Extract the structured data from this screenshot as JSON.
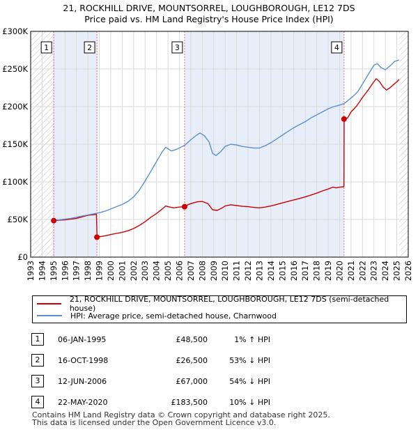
{
  "header": {
    "title_line1": "21, ROCKHILL DRIVE, MOUNTSORREL, LOUGHBOROUGH, LE12 7DS",
    "title_line2": "Price paid vs. HM Land Registry's House Price Index (HPI)"
  },
  "chart_data": {
    "type": "line",
    "title": "21, ROCKHILL DRIVE, MOUNTSORREL, LOUGHBOROUGH, LE12 7DS — Price paid vs. HM Land Registry's House Price Index (HPI)",
    "xlim": [
      1993,
      2026
    ],
    "ylim": [
      0,
      300000
    ],
    "x_ticks": [
      1993,
      1994,
      1995,
      1996,
      1997,
      1998,
      1999,
      2000,
      2001,
      2002,
      2003,
      2004,
      2005,
      2006,
      2007,
      2008,
      2009,
      2010,
      2011,
      2012,
      2013,
      2014,
      2015,
      2016,
      2017,
      2018,
      2019,
      2020,
      2021,
      2022,
      2023,
      2024,
      2025,
      2026
    ],
    "y_ticks": [
      {
        "value": 0,
        "label": "£0"
      },
      {
        "value": 50000,
        "label": "£50K"
      },
      {
        "value": 100000,
        "label": "£100K"
      },
      {
        "value": 150000,
        "label": "£150K"
      },
      {
        "value": 200000,
        "label": "£200K"
      },
      {
        "value": 250000,
        "label": "£250K"
      },
      {
        "value": 300000,
        "label": "£300K"
      }
    ],
    "hatch_regions": [
      [
        1993,
        1995.0
      ],
      [
        2025.2,
        2026
      ]
    ],
    "shaded_regions": [
      [
        1995.0,
        1998.8
      ],
      [
        2006.45,
        2020.4
      ]
    ],
    "series": [
      {
        "name": "21, ROCKHILL DRIVE, MOUNTSORREL, LOUGHBOROUGH, LE12 7DS (semi-detached house)",
        "color": "#cc0000",
        "points": [
          [
            1995.0,
            48500
          ],
          [
            1995.5,
            49000
          ],
          [
            1996.0,
            49500
          ],
          [
            1996.5,
            50500
          ],
          [
            1997.0,
            51500
          ],
          [
            1997.5,
            53500
          ],
          [
            1998.0,
            55500
          ],
          [
            1998.5,
            56500
          ],
          [
            1998.75,
            57000
          ],
          [
            1998.8,
            26500
          ],
          [
            1999.2,
            27500
          ],
          [
            1999.6,
            28500
          ],
          [
            2000.0,
            30000
          ],
          [
            2000.5,
            31500
          ],
          [
            2001.0,
            33000
          ],
          [
            2001.5,
            35000
          ],
          [
            2002.0,
            38000
          ],
          [
            2002.5,
            42000
          ],
          [
            2003.0,
            47000
          ],
          [
            2003.5,
            53000
          ],
          [
            2004.0,
            58000
          ],
          [
            2004.5,
            64000
          ],
          [
            2004.8,
            68000
          ],
          [
            2005.0,
            67000
          ],
          [
            2005.5,
            65500
          ],
          [
            2006.0,
            66500
          ],
          [
            2006.45,
            67000
          ],
          [
            2006.8,
            70000
          ],
          [
            2007.2,
            72000
          ],
          [
            2007.6,
            73500
          ],
          [
            2008.0,
            74000
          ],
          [
            2008.5,
            71000
          ],
          [
            2008.9,
            63000
          ],
          [
            2009.3,
            62000
          ],
          [
            2009.7,
            65000
          ],
          [
            2010.0,
            68000
          ],
          [
            2010.5,
            69500
          ],
          [
            2011.0,
            68500
          ],
          [
            2011.5,
            67500
          ],
          [
            2012.0,
            67000
          ],
          [
            2012.5,
            66000
          ],
          [
            2013.0,
            65500
          ],
          [
            2013.5,
            66500
          ],
          [
            2014.0,
            68000
          ],
          [
            2014.5,
            70000
          ],
          [
            2015.0,
            72000
          ],
          [
            2015.5,
            74000
          ],
          [
            2016.0,
            76000
          ],
          [
            2016.5,
            78000
          ],
          [
            2017.0,
            80000
          ],
          [
            2017.5,
            82500
          ],
          [
            2018.0,
            85000
          ],
          [
            2018.5,
            88000
          ],
          [
            2019.0,
            90500
          ],
          [
            2019.4,
            93000
          ],
          [
            2019.7,
            92000
          ],
          [
            2020.0,
            93000
          ],
          [
            2020.38,
            93500
          ],
          [
            2020.4,
            183500
          ],
          [
            2020.7,
            185000
          ],
          [
            2021.0,
            193000
          ],
          [
            2021.5,
            201000
          ],
          [
            2022.0,
            212000
          ],
          [
            2022.5,
            222000
          ],
          [
            2022.9,
            231000
          ],
          [
            2023.2,
            237000
          ],
          [
            2023.5,
            233000
          ],
          [
            2023.8,
            226000
          ],
          [
            2024.1,
            222000
          ],
          [
            2024.4,
            225000
          ],
          [
            2024.7,
            229000
          ],
          [
            2025.0,
            233000
          ],
          [
            2025.2,
            236000
          ]
        ]
      },
      {
        "name": "HPI: Average price, semi-detached house, Charnwood",
        "color": "#5b8fd0",
        "points": [
          [
            1995.0,
            49000
          ],
          [
            1995.5,
            49500
          ],
          [
            1996.0,
            50500
          ],
          [
            1996.5,
            51500
          ],
          [
            1997.0,
            53000
          ],
          [
            1997.5,
            54500
          ],
          [
            1998.0,
            56000
          ],
          [
            1998.5,
            57500
          ],
          [
            1999.0,
            59000
          ],
          [
            1999.5,
            61000
          ],
          [
            2000.0,
            64000
          ],
          [
            2000.5,
            67000
          ],
          [
            2001.0,
            70000
          ],
          [
            2001.5,
            74000
          ],
          [
            2002.0,
            80000
          ],
          [
            2002.5,
            89000
          ],
          [
            2003.0,
            101000
          ],
          [
            2003.5,
            114000
          ],
          [
            2004.0,
            127000
          ],
          [
            2004.5,
            140000
          ],
          [
            2004.8,
            146000
          ],
          [
            2005.0,
            144000
          ],
          [
            2005.3,
            141000
          ],
          [
            2005.7,
            143000
          ],
          [
            2006.0,
            145000
          ],
          [
            2006.5,
            149000
          ],
          [
            2007.0,
            156000
          ],
          [
            2007.5,
            162000
          ],
          [
            2007.8,
            165000
          ],
          [
            2008.2,
            161000
          ],
          [
            2008.6,
            153000
          ],
          [
            2008.9,
            138000
          ],
          [
            2009.2,
            135000
          ],
          [
            2009.6,
            140000
          ],
          [
            2010.0,
            147000
          ],
          [
            2010.5,
            150000
          ],
          [
            2011.0,
            149000
          ],
          [
            2011.5,
            147000
          ],
          [
            2012.0,
            146000
          ],
          [
            2012.5,
            145000
          ],
          [
            2013.0,
            145000
          ],
          [
            2013.5,
            148000
          ],
          [
            2014.0,
            152000
          ],
          [
            2014.5,
            157000
          ],
          [
            2015.0,
            162000
          ],
          [
            2015.5,
            167000
          ],
          [
            2016.0,
            172000
          ],
          [
            2016.5,
            176000
          ],
          [
            2017.0,
            180000
          ],
          [
            2017.5,
            185000
          ],
          [
            2018.0,
            189000
          ],
          [
            2018.5,
            193000
          ],
          [
            2019.0,
            197000
          ],
          [
            2019.5,
            200000
          ],
          [
            2020.0,
            202000
          ],
          [
            2020.4,
            204000
          ],
          [
            2020.8,
            209000
          ],
          [
            2021.2,
            214000
          ],
          [
            2021.6,
            220000
          ],
          [
            2022.0,
            230000
          ],
          [
            2022.4,
            240000
          ],
          [
            2022.8,
            250000
          ],
          [
            2023.0,
            255000
          ],
          [
            2023.3,
            257000
          ],
          [
            2023.6,
            252000
          ],
          [
            2024.0,
            249000
          ],
          [
            2024.4,
            254000
          ],
          [
            2024.8,
            260000
          ],
          [
            2025.2,
            262000
          ]
        ]
      }
    ],
    "sales": [
      {
        "label": "1",
        "x": 1995.02,
        "price": 48500
      },
      {
        "label": "2",
        "x": 1998.79,
        "price": 26500
      },
      {
        "label": "3",
        "x": 2006.45,
        "price": 67000
      },
      {
        "label": "4",
        "x": 2020.39,
        "price": 183500
      }
    ]
  },
  "legend": {
    "property_label": "21, ROCKHILL DRIVE, MOUNTSORREL, LOUGHBOROUGH, LE12 7DS (semi-detached house)",
    "property_color": "#cc0000",
    "hpi_label": "HPI: Average price, semi-detached house, Charnwood",
    "hpi_color": "#5b8fd0"
  },
  "transactions": [
    {
      "num": "1",
      "date": "06-JAN-1995",
      "price": "£48,500",
      "hpi": "1% ↑ HPI"
    },
    {
      "num": "2",
      "date": "16-OCT-1998",
      "price": "£26,500",
      "hpi": "53% ↓ HPI"
    },
    {
      "num": "3",
      "date": "12-JUN-2006",
      "price": "£67,000",
      "hpi": "54% ↓ HPI"
    },
    {
      "num": "4",
      "date": "22-MAY-2020",
      "price": "£183,500",
      "hpi": "10% ↓ HPI"
    }
  ],
  "footer": {
    "line1": "Contains HM Land Registry data © Crown copyright and database right 2025.",
    "line2": "This data is licensed under the Open Government Licence v3.0."
  }
}
